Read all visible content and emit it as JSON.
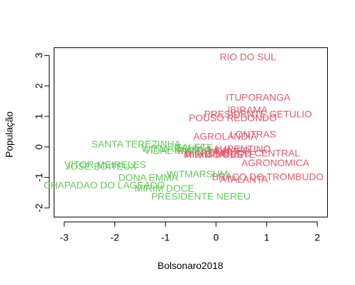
{
  "chart_data": {
    "type": "scatter",
    "title": "",
    "xlabel": "Bolsonaro2018",
    "ylabel": "População",
    "xlim": [
      -3.2,
      2.2
    ],
    "ylim": [
      -2.3,
      3.25
    ],
    "xticks": [
      -3,
      -2,
      -1,
      0,
      1,
      2
    ],
    "yticks": [
      -2,
      -1,
      0,
      1,
      2,
      3
    ],
    "groups": [
      {
        "name": "group-1",
        "color": "#E05A6E"
      },
      {
        "name": "group-2",
        "color": "#62C95A"
      }
    ],
    "points": [
      {
        "label": "RIO DO SUL",
        "x": 0.63,
        "y": 2.95,
        "group": 0
      },
      {
        "label": "ITUPORANGA",
        "x": 0.83,
        "y": 1.63,
        "group": 0
      },
      {
        "label": "IBIRAMA",
        "x": 0.62,
        "y": 1.22,
        "group": 0
      },
      {
        "label": "PRESIDENTE GETULIO",
        "x": 0.83,
        "y": 1.08,
        "group": 0
      },
      {
        "label": "POUSO REDONDO",
        "x": 0.33,
        "y": 0.95,
        "group": 0
      },
      {
        "label": "LONTRAS",
        "x": 0.73,
        "y": 0.42,
        "group": 0
      },
      {
        "label": "AGROLANDIA",
        "x": 0.18,
        "y": 0.35,
        "group": 0
      },
      {
        "label": "LAURENTINO",
        "x": 0.46,
        "y": -0.06,
        "group": 0
      },
      {
        "label": "RIO DO CAMPO",
        "x": -0.05,
        "y": -0.12,
        "group": 0
      },
      {
        "label": "TAIO",
        "x": 0.06,
        "y": -0.16,
        "group": 0
      },
      {
        "label": "TROMBUDO CENTRAL",
        "x": 0.62,
        "y": -0.2,
        "group": 0
      },
      {
        "label": "MIRIM DOCE",
        "x": -0.05,
        "y": -0.25,
        "group": 0
      },
      {
        "label": "RIO DO OESTE",
        "x": 0.08,
        "y": -0.25,
        "group": 0
      },
      {
        "label": "AGRONOMICA",
        "x": 1.17,
        "y": -0.52,
        "group": 0
      },
      {
        "label": "BRACO DO TROMBUDO",
        "x": 1.02,
        "y": -0.98,
        "group": 0
      },
      {
        "label": "ATALANTA",
        "x": 0.55,
        "y": -1.05,
        "group": 0
      },
      {
        "label": "SANTA TEREZINHA",
        "x": -1.58,
        "y": 0.1,
        "group": 1
      },
      {
        "label": "SALETE",
        "x": -0.43,
        "y": 0.0,
        "group": 1
      },
      {
        "label": "WITMARSUM",
        "x": -0.87,
        "y": -0.05,
        "group": 1
      },
      {
        "label": "VIDAL RAMOS",
        "x": -0.77,
        "y": -0.12,
        "group": 1
      },
      {
        "label": "VITOR MEIRELES",
        "x": -2.19,
        "y": -0.58,
        "group": 1
      },
      {
        "label": "JOSE BOITEUX",
        "x": -2.27,
        "y": -0.63,
        "group": 1
      },
      {
        "label": "WITMARSUM",
        "x": -0.37,
        "y": -0.88,
        "group": 1
      },
      {
        "label": "DONA EMMA",
        "x": -1.34,
        "y": -1.0,
        "group": 1
      },
      {
        "label": "CHAPADAO DO LAGEADO",
        "x": -2.21,
        "y": -1.25,
        "group": 1
      },
      {
        "label": "MIRIM DOCE",
        "x": -1.02,
        "y": -1.35,
        "group": 1
      },
      {
        "label": "PRESIDENTE NEREU",
        "x": -0.3,
        "y": -1.62,
        "group": 1
      }
    ]
  }
}
